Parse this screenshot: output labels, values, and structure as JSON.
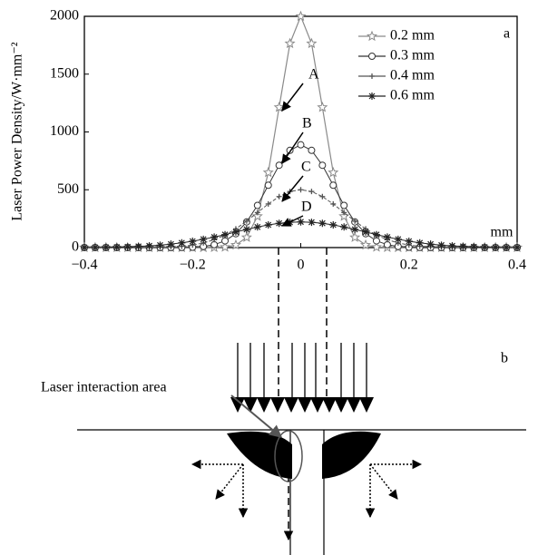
{
  "chart_data": {
    "type": "line",
    "y_label": "Laser Power Density/W·mm⁻²",
    "x_label": "mm",
    "panel_label": "a",
    "annotations": [
      "A",
      "B",
      "C",
      "D"
    ],
    "x": [
      -0.4,
      -0.38,
      -0.36,
      -0.34,
      -0.32,
      -0.3,
      -0.28,
      -0.26,
      -0.24,
      -0.22,
      -0.2,
      -0.18,
      -0.16,
      -0.14,
      -0.12,
      -0.1,
      -0.08,
      -0.06,
      -0.04,
      -0.02,
      0,
      0.02,
      0.04,
      0.06,
      0.08,
      0.1,
      0.12,
      0.14,
      0.16,
      0.18,
      0.2,
      0.22,
      0.24,
      0.26,
      0.28,
      0.3,
      0.32,
      0.34,
      0.36,
      0.38,
      0.4
    ],
    "xlim": [
      -0.4,
      0.4
    ],
    "xticks": [
      {
        "value": -0.4,
        "label": "−0.4"
      },
      {
        "value": -0.2,
        "label": "−0.2"
      },
      0,
      0.2,
      0.4
    ],
    "ylim": [
      0,
      2000
    ],
    "yticks": [
      0,
      500,
      1000,
      1500,
      2000
    ],
    "legend": "upper right",
    "series": [
      {
        "name": "0.2 mm",
        "color": "#8a8a8a",
        "marker": "star",
        "values": [
          0,
          0,
          0,
          0,
          0,
          0,
          0,
          0,
          0,
          0,
          0,
          0,
          1,
          4,
          22,
          88,
          271,
          649,
          1213,
          1765,
          2000,
          1765,
          1213,
          649,
          271,
          88,
          22,
          4,
          1,
          0,
          0,
          0,
          0,
          0,
          0,
          0,
          0,
          0,
          0,
          0,
          0
        ]
      },
      {
        "name": "0.3 mm",
        "color": "#333333",
        "marker": "circle",
        "values": [
          0,
          0,
          0,
          0,
          0,
          0,
          0,
          0,
          0,
          1,
          3,
          10,
          25,
          58,
          120,
          222,
          365,
          539,
          712,
          841,
          889,
          841,
          712,
          539,
          365,
          222,
          120,
          58,
          25,
          10,
          3,
          1,
          0,
          0,
          0,
          0,
          0,
          0,
          0,
          0,
          0
        ]
      },
      {
        "name": "0.4 mm",
        "color": "#555555",
        "marker": "plus",
        "values": [
          0,
          0,
          0,
          0,
          0,
          0,
          1,
          3,
          6,
          11,
          22,
          40,
          68,
          108,
          162,
          229,
          303,
          377,
          441,
          485,
          500,
          485,
          441,
          377,
          303,
          229,
          162,
          108,
          68,
          40,
          22,
          11,
          6,
          3,
          1,
          0,
          0,
          0,
          0,
          0,
          0
        ]
      },
      {
        "name": "0.6 mm",
        "color": "#222222",
        "marker": "asterisk",
        "values": [
          1,
          1,
          2,
          4,
          6,
          10,
          15,
          21,
          30,
          41,
          55,
          72,
          91,
          112,
          135,
          157,
          178,
          196,
          210,
          219,
          222,
          219,
          210,
          196,
          178,
          157,
          135,
          112,
          91,
          72,
          55,
          41,
          30,
          21,
          15,
          10,
          6,
          4,
          2,
          1,
          1
        ]
      }
    ]
  },
  "diagram": {
    "panel_label": "b",
    "callout": "Laser interaction area"
  }
}
